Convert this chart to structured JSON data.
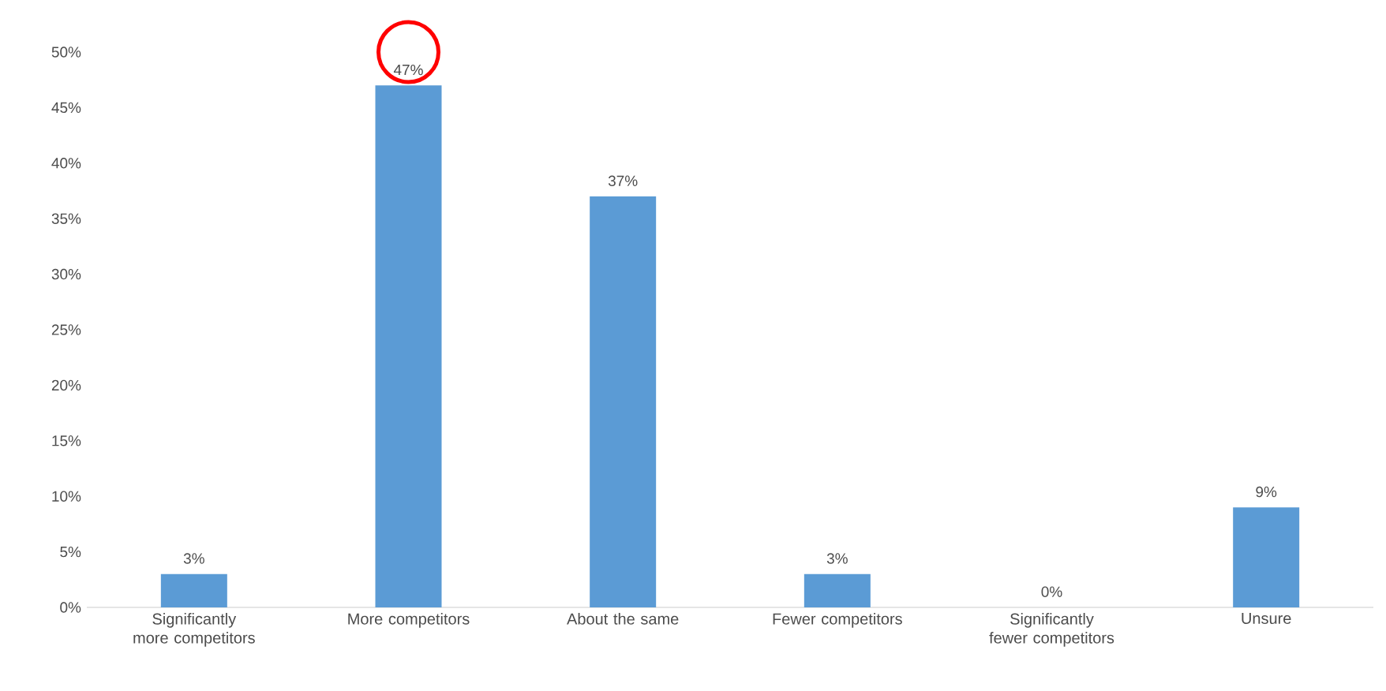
{
  "chart_data": {
    "type": "bar",
    "categories": [
      "Significantly more competitors",
      "More competitors",
      "About the same",
      "Fewer competitors",
      "Significantly fewer competitors",
      "Unsure"
    ],
    "values": [
      3,
      47,
      37,
      3,
      0,
      9
    ],
    "value_labels": [
      "3%",
      "47%",
      "37%",
      "3%",
      "0%",
      "9%"
    ],
    "color": "#5b9bd5",
    "ylim": [
      0,
      50
    ],
    "yticks": [
      {
        "value": 0,
        "label": "0%"
      },
      {
        "value": 5,
        "label": "5%"
      },
      {
        "value": 10,
        "label": "10%"
      },
      {
        "value": 15,
        "label": "15%"
      },
      {
        "value": 20,
        "label": "20%"
      },
      {
        "value": 25,
        "label": "25%"
      },
      {
        "value": 30,
        "label": "30%"
      },
      {
        "value": 35,
        "label": "35%"
      },
      {
        "value": 40,
        "label": "40%"
      },
      {
        "value": 45,
        "label": "45%"
      },
      {
        "value": 50,
        "label": "50%"
      }
    ]
  }
}
